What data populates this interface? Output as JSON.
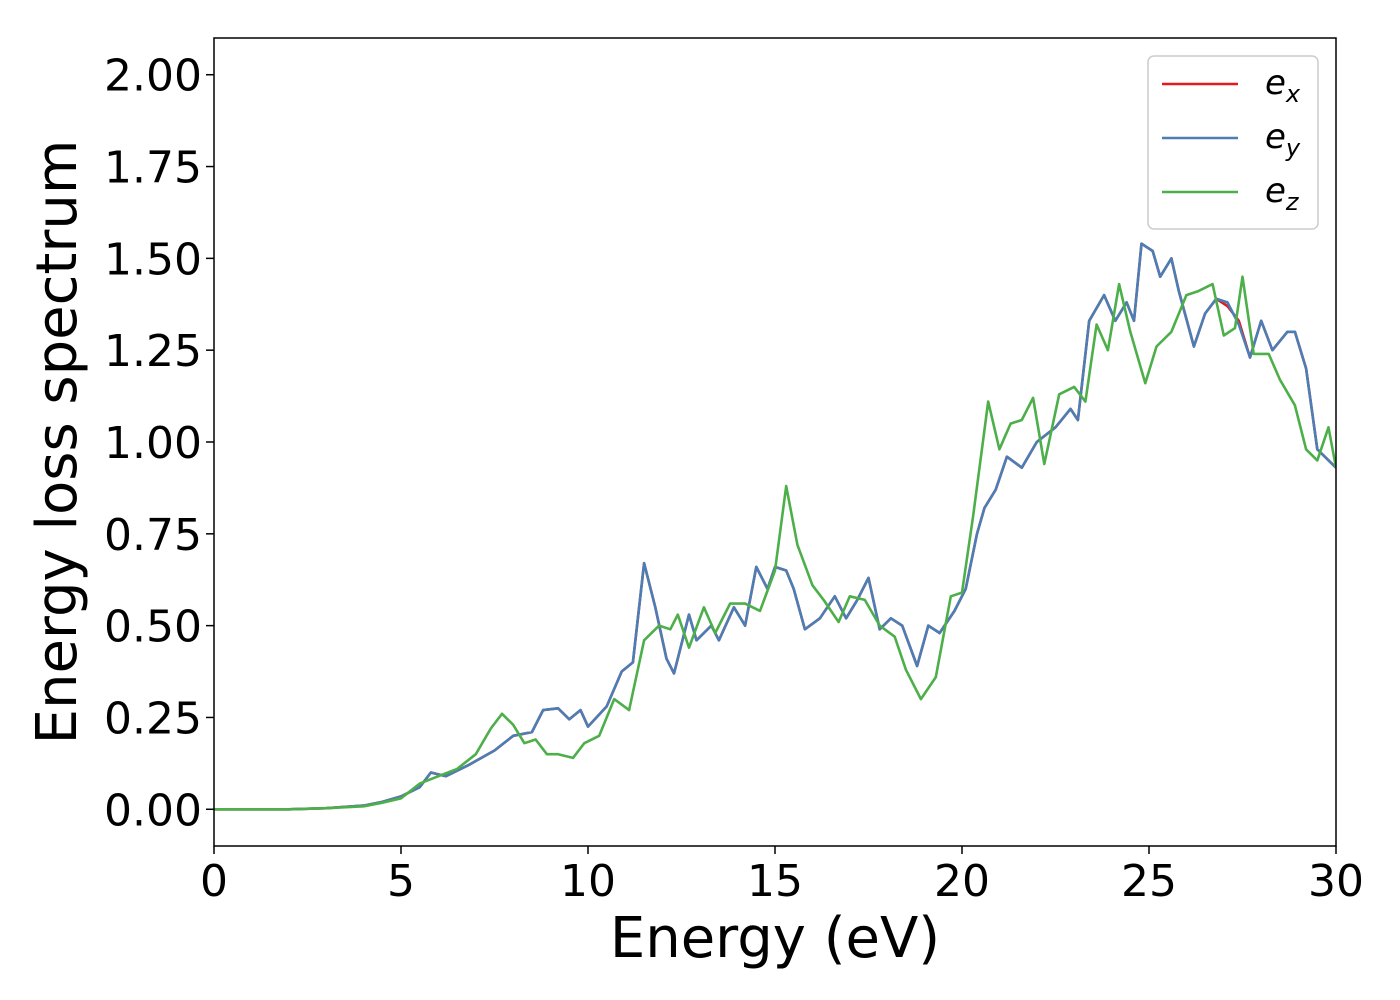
{
  "chart_data": {
    "type": "line",
    "title": "",
    "xlabel": "Energy (eV)",
    "ylabel": "Energy loss spectrum",
    "xlim": [
      0,
      30
    ],
    "ylim": [
      -0.1,
      2.1
    ],
    "x_ticks": [
      0,
      5,
      10,
      15,
      20,
      25,
      30
    ],
    "x_tick_labels": [
      "0",
      "5",
      "10",
      "15",
      "20",
      "25",
      "30"
    ],
    "y_ticks": [
      0,
      0.25,
      0.5,
      0.75,
      1.0,
      1.25,
      1.5,
      1.75,
      2.0
    ],
    "y_tick_labels": [
      "0.00",
      "0.25",
      "0.50",
      "0.75",
      "1.00",
      "1.25",
      "1.50",
      "1.75",
      "2.00"
    ],
    "grid": false,
    "legend_position": "top-right",
    "series": [
      {
        "name": "e",
        "subscript": "x",
        "color": "#e41a1c",
        "points": [
          [
            0,
            0
          ],
          [
            2,
            0
          ],
          [
            3,
            0.003
          ],
          [
            4,
            0.01
          ],
          [
            4.5,
            0.02
          ],
          [
            5,
            0.035
          ],
          [
            5.5,
            0.06
          ],
          [
            5.8,
            0.1
          ],
          [
            6.2,
            0.09
          ],
          [
            6.8,
            0.12
          ],
          [
            7.5,
            0.16
          ],
          [
            8,
            0.2
          ],
          [
            8.5,
            0.21
          ],
          [
            8.8,
            0.27
          ],
          [
            9.2,
            0.275
          ],
          [
            9.5,
            0.245
          ],
          [
            9.8,
            0.27
          ],
          [
            10,
            0.225
          ],
          [
            10.5,
            0.28
          ],
          [
            10.9,
            0.375
          ],
          [
            11.2,
            0.4
          ],
          [
            11.5,
            0.67
          ],
          [
            11.8,
            0.55
          ],
          [
            12.1,
            0.41
          ],
          [
            12.3,
            0.37
          ],
          [
            12.7,
            0.53
          ],
          [
            12.9,
            0.46
          ],
          [
            13.3,
            0.5
          ],
          [
            13.5,
            0.46
          ],
          [
            13.9,
            0.55
          ],
          [
            14.2,
            0.5
          ],
          [
            14.5,
            0.66
          ],
          [
            14.8,
            0.6
          ],
          [
            15,
            0.66
          ],
          [
            15.3,
            0.65
          ],
          [
            15.5,
            0.6
          ],
          [
            15.8,
            0.49
          ],
          [
            16.2,
            0.52
          ],
          [
            16.6,
            0.58
          ],
          [
            16.9,
            0.52
          ],
          [
            17.2,
            0.57
          ],
          [
            17.5,
            0.63
          ],
          [
            17.8,
            0.49
          ],
          [
            18.1,
            0.52
          ],
          [
            18.4,
            0.5
          ],
          [
            18.8,
            0.39
          ],
          [
            19.1,
            0.5
          ],
          [
            19.4,
            0.48
          ],
          [
            19.8,
            0.54
          ],
          [
            20.1,
            0.6
          ],
          [
            20.4,
            0.75
          ],
          [
            20.6,
            0.82
          ],
          [
            20.9,
            0.87
          ],
          [
            21.2,
            0.96
          ],
          [
            21.6,
            0.93
          ],
          [
            22,
            1.0
          ],
          [
            22.5,
            1.04
          ],
          [
            22.9,
            1.09
          ],
          [
            23.1,
            1.06
          ],
          [
            23.4,
            1.33
          ],
          [
            23.8,
            1.4
          ],
          [
            24.1,
            1.33
          ],
          [
            24.4,
            1.38
          ],
          [
            24.6,
            1.33
          ],
          [
            24.8,
            1.54
          ],
          [
            25.1,
            1.52
          ],
          [
            25.3,
            1.45
          ],
          [
            25.6,
            1.5
          ],
          [
            25.8,
            1.41
          ],
          [
            26.2,
            1.26
          ],
          [
            26.5,
            1.35
          ],
          [
            26.8,
            1.39
          ],
          [
            27.1,
            1.37
          ],
          [
            27.4,
            1.33
          ],
          [
            27.7,
            1.23
          ],
          [
            28,
            1.33
          ],
          [
            28.3,
            1.25
          ],
          [
            28.7,
            1.3
          ],
          [
            28.9,
            1.3
          ],
          [
            29.2,
            1.2
          ],
          [
            29.5,
            0.98
          ],
          [
            30,
            0.93
          ]
        ]
      },
      {
        "name": "e",
        "subscript": "y",
        "color": "#4a7eb5",
        "points": [
          [
            0,
            0
          ],
          [
            2,
            0
          ],
          [
            3,
            0.003
          ],
          [
            4,
            0.01
          ],
          [
            4.5,
            0.02
          ],
          [
            5,
            0.035
          ],
          [
            5.5,
            0.06
          ],
          [
            5.8,
            0.1
          ],
          [
            6.2,
            0.09
          ],
          [
            6.8,
            0.12
          ],
          [
            7.5,
            0.16
          ],
          [
            8,
            0.2
          ],
          [
            8.5,
            0.21
          ],
          [
            8.8,
            0.27
          ],
          [
            9.2,
            0.275
          ],
          [
            9.5,
            0.245
          ],
          [
            9.8,
            0.27
          ],
          [
            10,
            0.225
          ],
          [
            10.5,
            0.28
          ],
          [
            10.9,
            0.375
          ],
          [
            11.2,
            0.4
          ],
          [
            11.5,
            0.67
          ],
          [
            11.8,
            0.55
          ],
          [
            12.1,
            0.41
          ],
          [
            12.3,
            0.37
          ],
          [
            12.7,
            0.53
          ],
          [
            12.9,
            0.46
          ],
          [
            13.3,
            0.5
          ],
          [
            13.5,
            0.46
          ],
          [
            13.9,
            0.55
          ],
          [
            14.2,
            0.5
          ],
          [
            14.5,
            0.66
          ],
          [
            14.8,
            0.6
          ],
          [
            15,
            0.66
          ],
          [
            15.3,
            0.65
          ],
          [
            15.5,
            0.6
          ],
          [
            15.8,
            0.49
          ],
          [
            16.2,
            0.52
          ],
          [
            16.6,
            0.58
          ],
          [
            16.9,
            0.52
          ],
          [
            17.2,
            0.57
          ],
          [
            17.5,
            0.63
          ],
          [
            17.8,
            0.49
          ],
          [
            18.1,
            0.52
          ],
          [
            18.4,
            0.5
          ],
          [
            18.8,
            0.39
          ],
          [
            19.1,
            0.5
          ],
          [
            19.4,
            0.48
          ],
          [
            19.8,
            0.54
          ],
          [
            20.1,
            0.6
          ],
          [
            20.4,
            0.75
          ],
          [
            20.6,
            0.82
          ],
          [
            20.9,
            0.87
          ],
          [
            21.2,
            0.96
          ],
          [
            21.6,
            0.93
          ],
          [
            22,
            1.0
          ],
          [
            22.5,
            1.04
          ],
          [
            22.9,
            1.09
          ],
          [
            23.1,
            1.06
          ],
          [
            23.4,
            1.33
          ],
          [
            23.8,
            1.4
          ],
          [
            24.1,
            1.33
          ],
          [
            24.4,
            1.38
          ],
          [
            24.6,
            1.33
          ],
          [
            24.8,
            1.54
          ],
          [
            25.1,
            1.52
          ],
          [
            25.3,
            1.45
          ],
          [
            25.6,
            1.5
          ],
          [
            25.8,
            1.41
          ],
          [
            26.2,
            1.26
          ],
          [
            26.5,
            1.35
          ],
          [
            26.8,
            1.39
          ],
          [
            27.1,
            1.38
          ],
          [
            27.4,
            1.32
          ],
          [
            27.7,
            1.23
          ],
          [
            28,
            1.33
          ],
          [
            28.3,
            1.25
          ],
          [
            28.7,
            1.3
          ],
          [
            28.9,
            1.3
          ],
          [
            29.2,
            1.2
          ],
          [
            29.5,
            0.98
          ],
          [
            30,
            0.93
          ]
        ]
      },
      {
        "name": "e",
        "subscript": "z",
        "color": "#4daf4a",
        "points": [
          [
            0,
            0
          ],
          [
            2,
            0
          ],
          [
            3,
            0.003
          ],
          [
            4,
            0.008
          ],
          [
            4.5,
            0.018
          ],
          [
            5,
            0.03
          ],
          [
            5.5,
            0.07
          ],
          [
            6,
            0.09
          ],
          [
            6.5,
            0.11
          ],
          [
            7,
            0.15
          ],
          [
            7.4,
            0.22
          ],
          [
            7.7,
            0.26
          ],
          [
            8,
            0.23
          ],
          [
            8.3,
            0.18
          ],
          [
            8.6,
            0.19
          ],
          [
            8.9,
            0.15
          ],
          [
            9.2,
            0.15
          ],
          [
            9.6,
            0.14
          ],
          [
            9.9,
            0.18
          ],
          [
            10.3,
            0.2
          ],
          [
            10.7,
            0.3
          ],
          [
            11.1,
            0.27
          ],
          [
            11.5,
            0.46
          ],
          [
            11.9,
            0.5
          ],
          [
            12.2,
            0.49
          ],
          [
            12.4,
            0.53
          ],
          [
            12.7,
            0.44
          ],
          [
            13.1,
            0.55
          ],
          [
            13.4,
            0.48
          ],
          [
            13.8,
            0.56
          ],
          [
            14.2,
            0.56
          ],
          [
            14.6,
            0.54
          ],
          [
            15,
            0.65
          ],
          [
            15.3,
            0.88
          ],
          [
            15.6,
            0.72
          ],
          [
            16,
            0.61
          ],
          [
            16.3,
            0.57
          ],
          [
            16.7,
            0.51
          ],
          [
            17,
            0.58
          ],
          [
            17.4,
            0.57
          ],
          [
            17.8,
            0.5
          ],
          [
            18.2,
            0.47
          ],
          [
            18.5,
            0.38
          ],
          [
            18.9,
            0.3
          ],
          [
            19.3,
            0.36
          ],
          [
            19.7,
            0.58
          ],
          [
            20,
            0.59
          ],
          [
            20.3,
            0.8
          ],
          [
            20.7,
            1.11
          ],
          [
            21,
            0.98
          ],
          [
            21.3,
            1.05
          ],
          [
            21.6,
            1.06
          ],
          [
            21.9,
            1.12
          ],
          [
            22.2,
            0.94
          ],
          [
            22.6,
            1.13
          ],
          [
            23,
            1.15
          ],
          [
            23.3,
            1.11
          ],
          [
            23.6,
            1.32
          ],
          [
            23.9,
            1.25
          ],
          [
            24.2,
            1.43
          ],
          [
            24.5,
            1.3
          ],
          [
            24.9,
            1.16
          ],
          [
            25.2,
            1.26
          ],
          [
            25.6,
            1.3
          ],
          [
            26,
            1.4
          ],
          [
            26.3,
            1.41
          ],
          [
            26.7,
            1.43
          ],
          [
            27,
            1.29
          ],
          [
            27.3,
            1.31
          ],
          [
            27.5,
            1.45
          ],
          [
            27.8,
            1.24
          ],
          [
            28.2,
            1.24
          ],
          [
            28.5,
            1.17
          ],
          [
            28.9,
            1.1
          ],
          [
            29.2,
            0.98
          ],
          [
            29.5,
            0.95
          ],
          [
            29.8,
            1.04
          ],
          [
            30,
            0.93
          ]
        ]
      }
    ]
  }
}
